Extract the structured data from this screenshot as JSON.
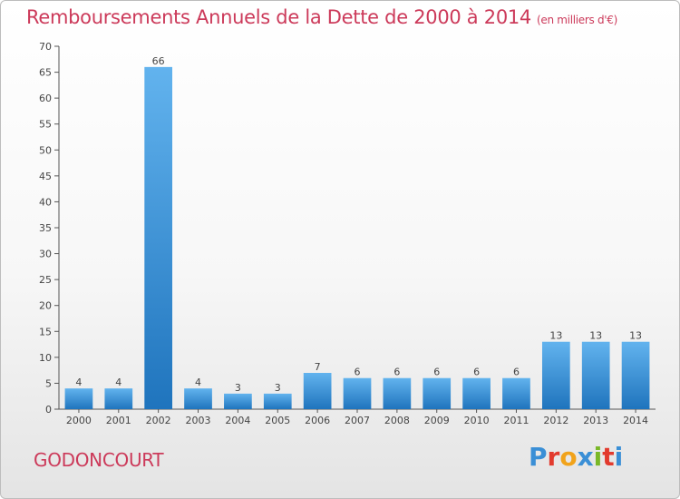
{
  "header": {
    "title": "Remboursements Annuels de la Dette de 2000 à 2014",
    "subtitle": "(en milliers d'€)"
  },
  "footer": {
    "place": "GODONCOURT",
    "logo_parts": [
      "P",
      "r",
      "o",
      "x",
      "i",
      "t",
      "i"
    ],
    "logo_colors": [
      "#3a8fd6",
      "#e23b2e",
      "#f1a31b",
      "#3a8fd6",
      "#7ab828",
      "#e23b2e",
      "#3a8fd6"
    ]
  },
  "chart_data": {
    "type": "bar",
    "title": "Remboursements Annuels de la Dette de 2000 à 2014",
    "categories": [
      "2000",
      "2001",
      "2002",
      "2003",
      "2004",
      "2005",
      "2006",
      "2007",
      "2008",
      "2009",
      "2010",
      "2011",
      "2012",
      "2013",
      "2014"
    ],
    "values": [
      4,
      4,
      66,
      4,
      3,
      3,
      7,
      6,
      6,
      6,
      6,
      6,
      13,
      13,
      13
    ],
    "ylim": [
      0,
      70
    ],
    "yticks": [
      0,
      5,
      10,
      15,
      20,
      25,
      30,
      35,
      40,
      45,
      50,
      55,
      60,
      65,
      70
    ],
    "grid": false,
    "bar_color": "#3a8fd6"
  }
}
